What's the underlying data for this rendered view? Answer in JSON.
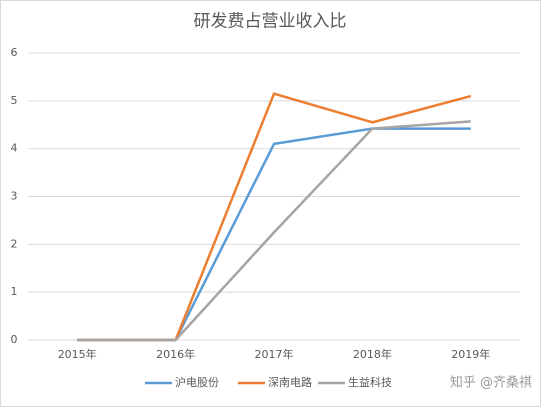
{
  "chart_data": {
    "type": "line",
    "title": "研发费占营业收入比",
    "categories": [
      "2015年",
      "2016年",
      "2017年",
      "2018年",
      "2019年"
    ],
    "series": [
      {
        "name": "沪电股份",
        "color": "#5b9bd5",
        "values": [
          0,
          0,
          4.1,
          4.42,
          4.42
        ]
      },
      {
        "name": "深南电路",
        "color": "#ed7d31",
        "values": [
          0,
          0,
          5.15,
          4.55,
          5.1
        ]
      },
      {
        "name": "生益科技",
        "color": "#a5a5a5",
        "values": [
          0,
          0,
          2.25,
          4.42,
          4.57
        ]
      }
    ],
    "ylim": [
      0,
      6
    ],
    "yticks": [
      0,
      1,
      2,
      3,
      4,
      5,
      6
    ],
    "grid": true,
    "legend": "bottom",
    "watermark": "知乎 @齐桑祺"
  }
}
